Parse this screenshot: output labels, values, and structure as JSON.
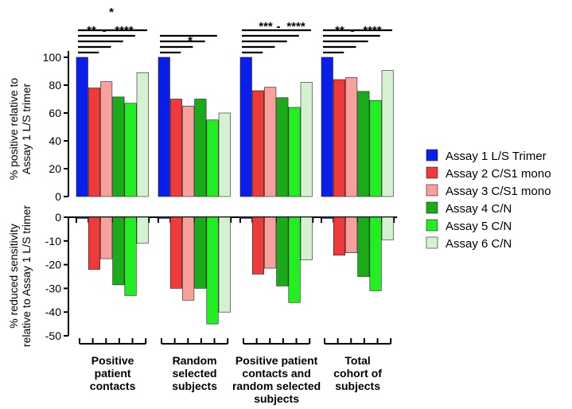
{
  "chart_data": [
    {
      "type": "bar",
      "ylabel": [
        "% positive relative to",
        "Assay 1 L/S trimer"
      ],
      "ylim": [
        0,
        100
      ],
      "yticks": [
        0,
        20,
        40,
        60,
        80,
        100
      ],
      "grid": false,
      "categories": [
        [
          "Positive",
          "patient",
          "contacts"
        ],
        [
          "Random",
          "selected",
          "subjects"
        ],
        [
          "Positive patient",
          "contacts and",
          "random selected",
          "subjects"
        ],
        [
          "Total",
          "cohort of",
          "subjects"
        ]
      ],
      "series": [
        {
          "name": "Assay 1 L/S Trimer",
          "color": "#0a1eea",
          "values": [
            100,
            100,
            100,
            100
          ]
        },
        {
          "name": "Assay 2 C/S1 mono",
          "color": "#ee3a3a",
          "values": [
            78,
            70,
            76,
            84
          ]
        },
        {
          "name": "Assay 3 C/S1 mono",
          "color": "#f7a09c",
          "values": [
            82.5,
            65,
            78.5,
            85.5
          ]
        },
        {
          "name": "Assay 4 C/N",
          "color": "#1aaa1a",
          "values": [
            71.5,
            70,
            71,
            75.5
          ]
        },
        {
          "name": "Assay 5 C/N",
          "color": "#22ee22",
          "values": [
            67,
            55,
            64,
            69
          ]
        },
        {
          "name": "Assay 6 C/N",
          "color": "#d4f2d0",
          "values": [
            89,
            60,
            82,
            90.5
          ]
        }
      ],
      "significance": [
        [
          "*",
          "**",
          "-",
          "****"
        ],
        [
          "*"
        ],
        [
          "***",
          "-",
          "****"
        ],
        [
          "**",
          "-",
          "****"
        ]
      ]
    },
    {
      "type": "bar",
      "ylabel": [
        "% reduced sensitivity",
        "relative to Assay 1 L/S trimer"
      ],
      "ylim": [
        -50,
        0
      ],
      "yticks": [
        0,
        -10,
        -20,
        -30,
        -40,
        -50
      ],
      "grid": false,
      "legend_position": "right",
      "series": [
        {
          "name": "Assay 1 L/S Trimer",
          "color": "#0a1eea",
          "values": [
            -0.5,
            -0.5,
            -0.5,
            -0.5
          ]
        },
        {
          "name": "Assay 2 C/S1 mono",
          "color": "#ee3a3a",
          "values": [
            -22,
            -30,
            -24,
            -16
          ]
        },
        {
          "name": "Assay 3 C/S1 mono",
          "color": "#f7a09c",
          "values": [
            -17.5,
            -35,
            -21.5,
            -15
          ]
        },
        {
          "name": "Assay 4 C/N",
          "color": "#1aaa1a",
          "values": [
            -28.5,
            -30,
            -29,
            -25
          ]
        },
        {
          "name": "Assay 5 C/N",
          "color": "#22ee22",
          "values": [
            -33,
            -45,
            -36,
            -31
          ]
        },
        {
          "name": "Assay 6 C/N",
          "color": "#d4f2d0",
          "values": [
            -11,
            -40,
            -18,
            -9.5
          ]
        }
      ]
    }
  ]
}
